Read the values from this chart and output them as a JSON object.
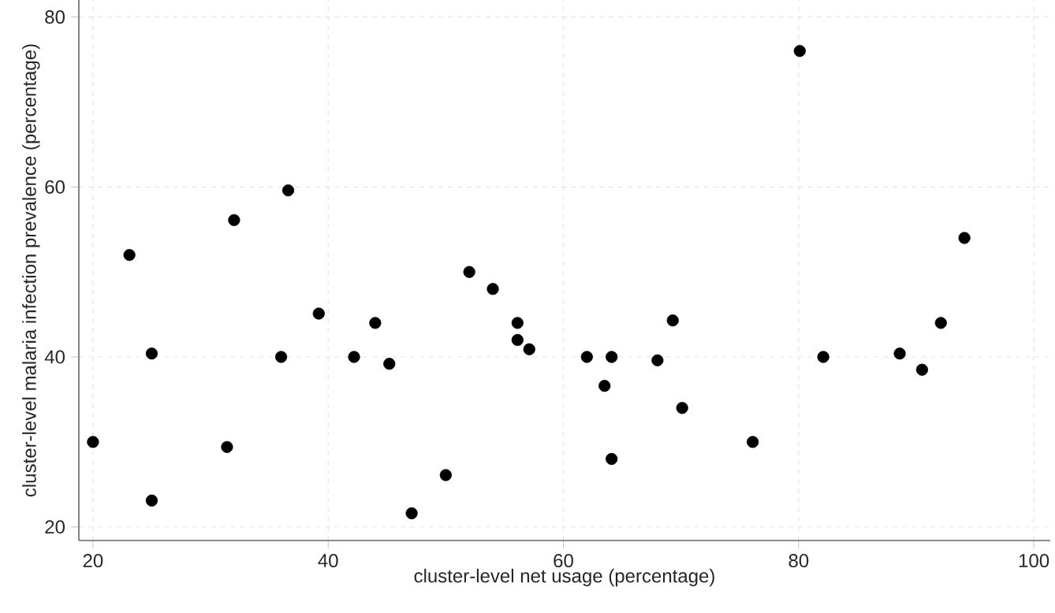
{
  "chart_data": {
    "type": "scatter",
    "xlabel": "cluster-level net usage (percentage)",
    "ylabel": "cluster-level malaria infection prevalence (percentage)",
    "x": [
      20,
      23.1,
      25,
      25,
      31.4,
      32,
      36.6,
      36,
      39.2,
      42.2,
      44,
      45.2,
      47.1,
      50,
      52,
      54,
      56.1,
      56.1,
      57.1,
      62,
      64.1,
      63.5,
      64.1,
      68,
      69.3,
      70.1,
      76.1,
      80.1,
      82.1,
      88.6,
      90.5,
      92.1,
      94.1
    ],
    "series": [
      {
        "color": "#000000",
        "values": [
          30,
          52,
          40.4,
          23.1,
          29.4,
          56.1,
          59.6,
          40,
          45.1,
          40,
          44,
          39.2,
          21.6,
          26.1,
          50,
          48,
          44,
          42,
          40.9,
          40,
          40,
          36.6,
          28,
          39.6,
          44.3,
          34,
          30,
          76,
          40,
          40.4,
          38.5,
          44,
          54
        ]
      }
    ],
    "xlim": [
      18.8,
      101.4
    ],
    "ylim": [
      18.4,
      82
    ],
    "xticks": [
      20,
      40,
      60,
      80,
      100
    ],
    "yticks": [
      20,
      40,
      60,
      80
    ],
    "grid": true,
    "marker": "circle"
  }
}
